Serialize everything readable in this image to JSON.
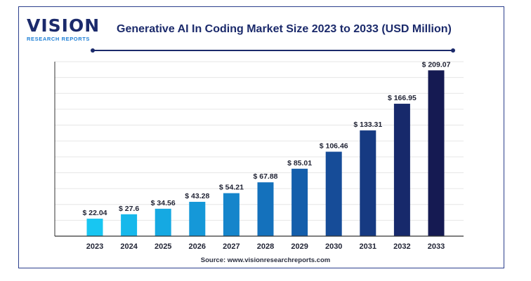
{
  "logo": {
    "word": "VISION",
    "sub": "RESEARCH REPORTS"
  },
  "chart_data": {
    "type": "bar",
    "title": "Generative AI In Coding Market Size 2023 to 2033 (USD Million)",
    "categories": [
      "2023",
      "2024",
      "2025",
      "2026",
      "2027",
      "2028",
      "2029",
      "2030",
      "2031",
      "2032",
      "2033"
    ],
    "values": [
      22.04,
      27.6,
      34.56,
      43.28,
      54.21,
      67.88,
      85.01,
      106.46,
      133.31,
      166.95,
      209.07
    ],
    "value_labels": [
      "$ 22.04",
      "$ 27.6",
      "$ 34.56",
      "$ 43.28",
      "$ 54.21",
      "$ 67.88",
      "$ 85.01",
      "$ 106.46",
      "$ 133.31",
      "$ 166.95",
      "$ 209.07"
    ],
    "bar_colors": [
      "#18c6f2",
      "#16b8eb",
      "#15a9e2",
      "#1598d8",
      "#1585cb",
      "#1471bc",
      "#145eab",
      "#164c98",
      "#163a82",
      "#17296b",
      "#151a52"
    ],
    "xlabel": "",
    "ylabel": "",
    "ylim": [
      0,
      220
    ],
    "grid": true,
    "source": "Source: www.visionresearchreports.com"
  }
}
